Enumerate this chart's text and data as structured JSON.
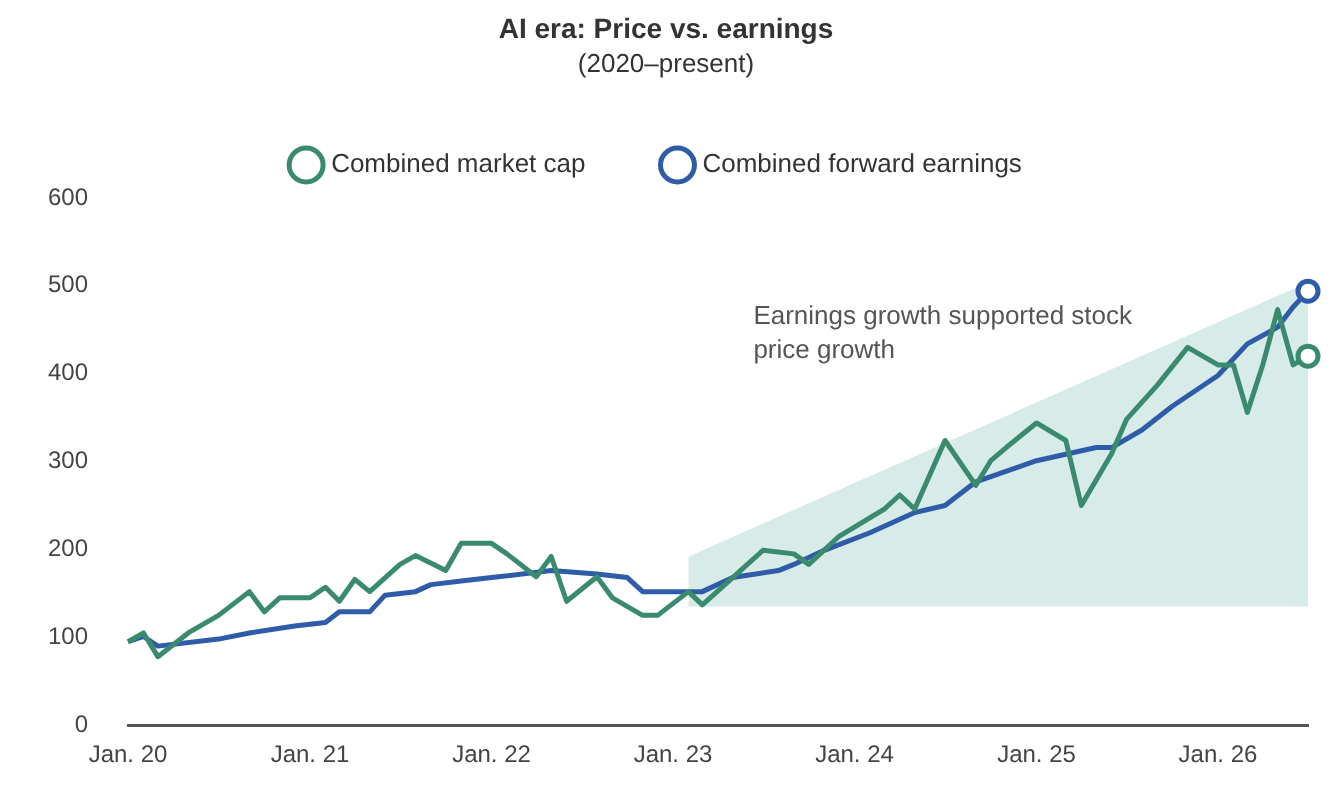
{
  "chart_data": {
    "type": "line",
    "title": "AI era: Price vs. earnings",
    "subtitle": "(2020–present)",
    "annotations": [
      "Earnings growth supported stock price growth"
    ],
    "xlim": [
      "2020-01",
      "2026-07"
    ],
    "xticks": [
      {
        "value": "2020-01",
        "label": "Jan. 20"
      },
      {
        "value": "2021-01",
        "label": "Jan. 21"
      },
      {
        "value": "2022-01",
        "label": "Jan. 22"
      },
      {
        "value": "2023-01",
        "label": "Jan. 23"
      },
      {
        "value": "2024-01",
        "label": "Jan. 24"
      },
      {
        "value": "2025-01",
        "label": "Jan. 25"
      },
      {
        "value": "2026-01",
        "label": "Jan. 26"
      }
    ],
    "ylim": [
      0,
      600
    ],
    "yticks": [
      0,
      100,
      200,
      300,
      400,
      500,
      600
    ],
    "grid": false,
    "legend": "top",
    "series": [
      {
        "name": "Combined market cap",
        "color": "#3a8a6e",
        "x": [
          "2020-01",
          "2020-02",
          "2020-03",
          "2020-05",
          "2020-07",
          "2020-09",
          "2020-10",
          "2020-11",
          "2021-01",
          "2021-02",
          "2021-03",
          "2021-04",
          "2021-05",
          "2021-07",
          "2021-08",
          "2021-10",
          "2021-11",
          "2022-01",
          "2022-02",
          "2022-04",
          "2022-05",
          "2022-06",
          "2022-08",
          "2022-09",
          "2022-11",
          "2022-12",
          "2023-02",
          "2023-03",
          "2023-05",
          "2023-07",
          "2023-09",
          "2023-10",
          "2023-12",
          "2024-03",
          "2024-04",
          "2024-05",
          "2024-07",
          "2024-09",
          "2024-10",
          "2024-11",
          "2025-01",
          "2025-03",
          "2025-04",
          "2025-06",
          "2025-07",
          "2025-09",
          "2025-11",
          "2026-01",
          "2026-02",
          "2026-03",
          "2026-04",
          "2026-05",
          "2026-06",
          "2026-07"
        ],
        "values": [
          95,
          105,
          78,
          105,
          125,
          152,
          129,
          145,
          145,
          157,
          141,
          166,
          152,
          183,
          193,
          176,
          207,
          207,
          195,
          169,
          192,
          141,
          169,
          145,
          125,
          125,
          152,
          137,
          168,
          199,
          195,
          183,
          215,
          246,
          262,
          246,
          324,
          273,
          301,
          316,
          344,
          324,
          250,
          309,
          348,
          387,
          430,
          410,
          410,
          356,
          410,
          473,
          410,
          420
        ]
      },
      {
        "name": "Combined forward earnings",
        "color": "#2e5ca8",
        "x": [
          "2020-01",
          "2020-02",
          "2020-03",
          "2020-07",
          "2020-09",
          "2020-12",
          "2021-02",
          "2021-03",
          "2021-05",
          "2021-06",
          "2021-08",
          "2021-09",
          "2021-11",
          "2022-01",
          "2022-05",
          "2022-08",
          "2022-10",
          "2022-11",
          "2023-03",
          "2023-05",
          "2023-08",
          "2023-09",
          "2023-11",
          "2024-02",
          "2024-05",
          "2024-07",
          "2024-09",
          "2025-01",
          "2025-05",
          "2025-06",
          "2025-08",
          "2025-10",
          "2026-01",
          "2026-03",
          "2026-05",
          "2026-06",
          "2026-07"
        ],
        "values": [
          95,
          101,
          90,
          98,
          105,
          113,
          117,
          129,
          129,
          148,
          152,
          160,
          164,
          168,
          176,
          172,
          168,
          152,
          152,
          168,
          176,
          183,
          199,
          219,
          242,
          250,
          277,
          301,
          316,
          316,
          336,
          363,
          398,
          434,
          453,
          476,
          494
        ]
      }
    ]
  }
}
